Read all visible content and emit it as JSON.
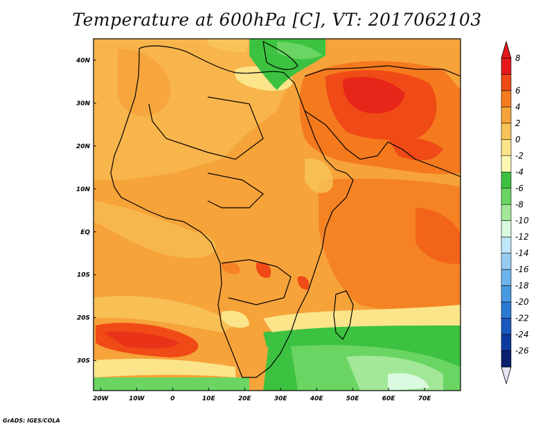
{
  "title": "Temperature at 600hPa [C], VT: 2017062103",
  "footer": "GrADS: IGES/COLA",
  "map": {
    "projection": "lat-lon",
    "lon_range": [
      -22,
      80
    ],
    "lat_range": [
      -37,
      45
    ],
    "lon_ticks": [
      {
        "label": "20W",
        "value": -20
      },
      {
        "label": "10W",
        "value": -10
      },
      {
        "label": "0",
        "value": 0
      },
      {
        "label": "10E",
        "value": 10
      },
      {
        "label": "20E",
        "value": 20
      },
      {
        "label": "30E",
        "value": 30
      },
      {
        "label": "40E",
        "value": 40
      },
      {
        "label": "50E",
        "value": 50
      },
      {
        "label": "60E",
        "value": 60
      },
      {
        "label": "70E",
        "value": 70
      }
    ],
    "lat_ticks": [
      {
        "label": "40N",
        "value": 40
      },
      {
        "label": "30N",
        "value": 30
      },
      {
        "label": "20N",
        "value": 20
      },
      {
        "label": "10N",
        "value": 10
      },
      {
        "label": "EQ",
        "value": 0
      },
      {
        "label": "10S",
        "value": -10
      },
      {
        "label": "20S",
        "value": -20
      },
      {
        "label": "30S",
        "value": -30
      }
    ]
  },
  "colorbar": {
    "labels": [
      "8",
      "6",
      "4",
      "2",
      "0",
      "-2",
      "-4",
      "-6",
      "-8",
      "-10",
      "-12",
      "-14",
      "-16",
      "-18",
      "-20",
      "-22",
      "-24",
      "-26"
    ],
    "colors": [
      "#e41a1a",
      "#f04a16",
      "#f57a1e",
      "#f6a33a",
      "#f8c45a",
      "#fbe48a",
      "#fdf7b4",
      "#3cc240",
      "#6ad562",
      "#a2e898",
      "#dafae0",
      "#bfe6fa",
      "#97ccf2",
      "#6db4ec",
      "#4998e2",
      "#2a7ad4",
      "#1a58bd",
      "#0c3a9f",
      "#08206e"
    ],
    "end_low_color": "#e6e6f8"
  }
}
